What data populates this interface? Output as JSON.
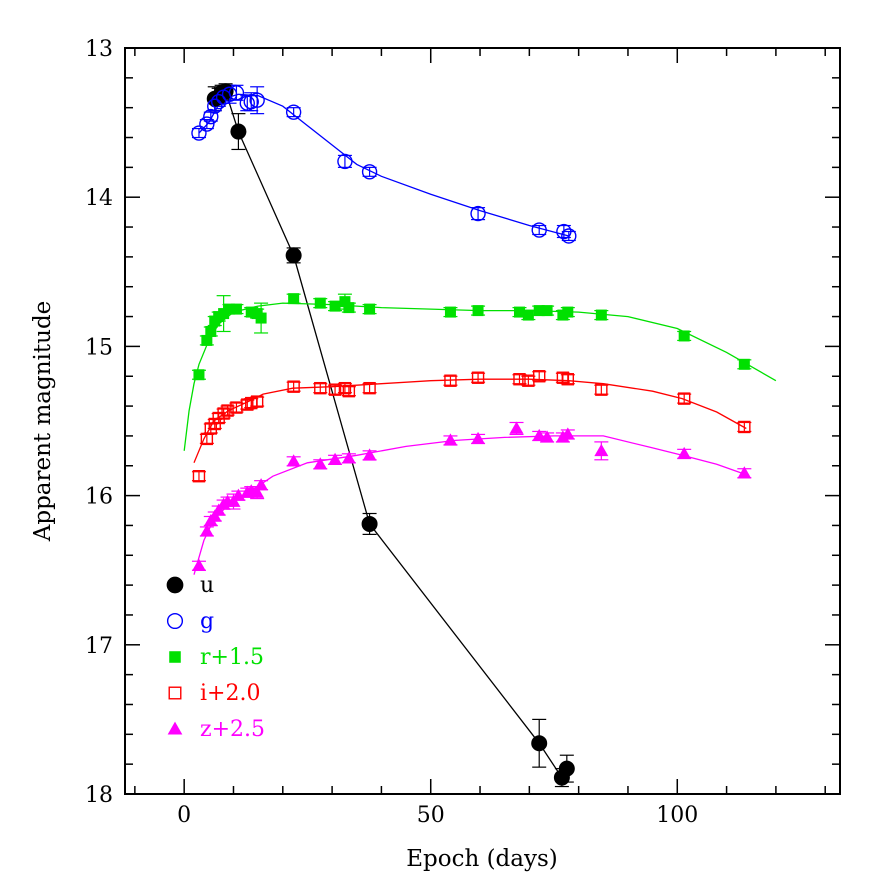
{
  "chart_data": {
    "type": "scatter",
    "title": "",
    "xlabel": "Epoch (days)",
    "ylabel": "Apparent magnitude",
    "xlim": [
      -12,
      133
    ],
    "ylim": [
      13,
      18
    ],
    "y_inverted": true,
    "xticks": [
      0,
      50,
      100
    ],
    "yticks": [
      13,
      14,
      15,
      16,
      17,
      18
    ],
    "legend_position": "bottom-left",
    "series": [
      {
        "name": "u",
        "color": "#000000",
        "marker": "filled-circle",
        "points": [
          {
            "x": 6.2,
            "y": 13.34,
            "err": 0.08
          },
          {
            "x": 7.0,
            "y": 13.33,
            "err": 0.06
          },
          {
            "x": 7.6,
            "y": 13.3,
            "err": 0.05
          },
          {
            "x": 8.4,
            "y": 13.29,
            "err": 0.05
          },
          {
            "x": 11.0,
            "y": 13.56,
            "err": 0.12
          },
          {
            "x": 22.2,
            "y": 14.39,
            "err": 0.05
          },
          {
            "x": 37.6,
            "y": 16.19,
            "err": 0.07
          },
          {
            "x": 72.0,
            "y": 17.66,
            "err": 0.16
          },
          {
            "x": 76.6,
            "y": 17.89,
            "err": 0.06
          },
          {
            "x": 77.6,
            "y": 17.83,
            "err": 0.09
          }
        ],
        "fit": [
          [
            6.2,
            13.34
          ],
          [
            8.4,
            13.29
          ],
          [
            11.0,
            13.56
          ],
          [
            22.2,
            14.39
          ],
          [
            37.6,
            16.19
          ],
          [
            72.0,
            17.66
          ],
          [
            76.6,
            17.89
          ],
          [
            77.6,
            17.83
          ]
        ]
      },
      {
        "name": "g",
        "color": "#0000ff",
        "marker": "open-circle",
        "points": [
          {
            "x": 3.0,
            "y": 13.57,
            "err": 0.03
          },
          {
            "x": 4.6,
            "y": 13.51,
            "err": 0.03
          },
          {
            "x": 5.4,
            "y": 13.46,
            "err": 0.03
          },
          {
            "x": 6.2,
            "y": 13.39,
            "err": 0.03
          },
          {
            "x": 7.0,
            "y": 13.36,
            "err": 0.03
          },
          {
            "x": 8.0,
            "y": 13.33,
            "err": 0.04
          },
          {
            "x": 9.2,
            "y": 13.31,
            "err": 0.06
          },
          {
            "x": 10.6,
            "y": 13.3,
            "err": 0.05
          },
          {
            "x": 12.8,
            "y": 13.37,
            "err": 0.05
          },
          {
            "x": 13.6,
            "y": 13.36,
            "err": 0.06
          },
          {
            "x": 14.8,
            "y": 13.35,
            "err": 0.09
          },
          {
            "x": 22.2,
            "y": 13.43,
            "err": 0.03
          },
          {
            "x": 32.6,
            "y": 13.76,
            "err": 0.04
          },
          {
            "x": 37.6,
            "y": 13.83,
            "err": 0.03
          },
          {
            "x": 59.6,
            "y": 14.11,
            "err": 0.04
          },
          {
            "x": 72.0,
            "y": 14.22,
            "err": 0.03
          },
          {
            "x": 77.0,
            "y": 14.23,
            "err": 0.04
          },
          {
            "x": 78.0,
            "y": 14.26,
            "err": 0.03
          }
        ],
        "fit": [
          [
            3,
            13.57
          ],
          [
            5,
            13.5
          ],
          [
            7,
            13.38
          ],
          [
            9,
            13.33
          ],
          [
            11,
            13.31
          ],
          [
            15,
            13.32
          ],
          [
            20,
            13.39
          ],
          [
            25,
            13.52
          ],
          [
            30,
            13.65
          ],
          [
            35,
            13.78
          ],
          [
            40,
            13.86
          ],
          [
            50,
            13.98
          ],
          [
            60,
            14.09
          ],
          [
            70,
            14.19
          ],
          [
            78,
            14.26
          ]
        ]
      },
      {
        "name": "r+1.5",
        "color": "#00e000",
        "marker": "filled-square",
        "points": [
          {
            "x": 3.0,
            "y": 15.19,
            "err": 0.03
          },
          {
            "x": 4.6,
            "y": 14.96,
            "err": 0.03
          },
          {
            "x": 5.4,
            "y": 14.9,
            "err": 0.03
          },
          {
            "x": 6.2,
            "y": 14.83,
            "err": 0.03
          },
          {
            "x": 7.0,
            "y": 14.8,
            "err": 0.03
          },
          {
            "x": 8.0,
            "y": 14.78,
            "err": 0.12
          },
          {
            "x": 9.2,
            "y": 14.75,
            "err": 0.03
          },
          {
            "x": 10.6,
            "y": 14.75,
            "err": 0.03
          },
          {
            "x": 13.6,
            "y": 14.77,
            "err": 0.03
          },
          {
            "x": 14.8,
            "y": 14.78,
            "err": 0.03
          },
          {
            "x": 15.6,
            "y": 14.81,
            "err": 0.1
          },
          {
            "x": 22.2,
            "y": 14.68,
            "err": 0.03
          },
          {
            "x": 27.6,
            "y": 14.71,
            "err": 0.03
          },
          {
            "x": 30.6,
            "y": 14.73,
            "err": 0.03
          },
          {
            "x": 32.6,
            "y": 14.7,
            "err": 0.05
          },
          {
            "x": 33.4,
            "y": 14.74,
            "err": 0.03
          },
          {
            "x": 37.6,
            "y": 14.75,
            "err": 0.03
          },
          {
            "x": 54.0,
            "y": 14.77,
            "err": 0.03
          },
          {
            "x": 59.6,
            "y": 14.76,
            "err": 0.03
          },
          {
            "x": 68.0,
            "y": 14.77,
            "err": 0.03
          },
          {
            "x": 69.8,
            "y": 14.79,
            "err": 0.03
          },
          {
            "x": 72.0,
            "y": 14.76,
            "err": 0.03
          },
          {
            "x": 73.6,
            "y": 14.76,
            "err": 0.03
          },
          {
            "x": 76.8,
            "y": 14.79,
            "err": 0.03
          },
          {
            "x": 77.8,
            "y": 14.77,
            "err": 0.03
          },
          {
            "x": 84.6,
            "y": 14.79,
            "err": 0.03
          },
          {
            "x": 101.4,
            "y": 14.93,
            "err": 0.03
          },
          {
            "x": 113.6,
            "y": 15.12,
            "err": 0.03
          }
        ],
        "fit": [
          [
            0,
            15.7
          ],
          [
            1,
            15.43
          ],
          [
            2,
            15.25
          ],
          [
            3,
            15.12
          ],
          [
            5,
            14.96
          ],
          [
            7,
            14.85
          ],
          [
            10,
            14.77
          ],
          [
            15,
            14.73
          ],
          [
            20,
            14.71
          ],
          [
            30,
            14.72
          ],
          [
            40,
            14.74
          ],
          [
            50,
            14.75
          ],
          [
            60,
            14.76
          ],
          [
            70,
            14.76
          ],
          [
            80,
            14.77
          ],
          [
            90,
            14.8
          ],
          [
            100,
            14.88
          ],
          [
            110,
            15.04
          ],
          [
            120,
            15.23
          ]
        ]
      },
      {
        "name": "i+2.0",
        "color": "#ff0000",
        "marker": "open-square",
        "points": [
          {
            "x": 3.0,
            "y": 15.87,
            "err": 0.03
          },
          {
            "x": 4.6,
            "y": 15.62,
            "err": 0.03
          },
          {
            "x": 5.4,
            "y": 15.55,
            "err": 0.03
          },
          {
            "x": 6.2,
            "y": 15.52,
            "err": 0.03
          },
          {
            "x": 7.0,
            "y": 15.48,
            "err": 0.03
          },
          {
            "x": 8.0,
            "y": 15.45,
            "err": 0.03
          },
          {
            "x": 8.8,
            "y": 15.43,
            "err": 0.03
          },
          {
            "x": 10.6,
            "y": 15.41,
            "err": 0.03
          },
          {
            "x": 12.8,
            "y": 15.39,
            "err": 0.03
          },
          {
            "x": 13.6,
            "y": 15.38,
            "err": 0.03
          },
          {
            "x": 14.8,
            "y": 15.37,
            "err": 0.03
          },
          {
            "x": 22.2,
            "y": 15.27,
            "err": 0.03
          },
          {
            "x": 27.6,
            "y": 15.28,
            "err": 0.03
          },
          {
            "x": 30.6,
            "y": 15.29,
            "err": 0.03
          },
          {
            "x": 32.6,
            "y": 15.28,
            "err": 0.03
          },
          {
            "x": 33.4,
            "y": 15.3,
            "err": 0.03
          },
          {
            "x": 37.6,
            "y": 15.28,
            "err": 0.03
          },
          {
            "x": 54.0,
            "y": 15.23,
            "err": 0.03
          },
          {
            "x": 59.6,
            "y": 15.21,
            "err": 0.03
          },
          {
            "x": 68.0,
            "y": 15.22,
            "err": 0.03
          },
          {
            "x": 69.8,
            "y": 15.23,
            "err": 0.03
          },
          {
            "x": 72.0,
            "y": 15.2,
            "err": 0.03
          },
          {
            "x": 76.8,
            "y": 15.21,
            "err": 0.03
          },
          {
            "x": 77.8,
            "y": 15.22,
            "err": 0.03
          },
          {
            "x": 84.6,
            "y": 15.29,
            "err": 0.03
          },
          {
            "x": 101.4,
            "y": 15.35,
            "err": 0.03
          },
          {
            "x": 113.6,
            "y": 15.54,
            "err": 0.03
          }
        ],
        "fit": [
          [
            2,
            15.78
          ],
          [
            4,
            15.62
          ],
          [
            6,
            15.5
          ],
          [
            9,
            15.43
          ],
          [
            13,
            15.37
          ],
          [
            16,
            15.32
          ],
          [
            22,
            15.28
          ],
          [
            30,
            15.27
          ],
          [
            40,
            15.25
          ],
          [
            50,
            15.23
          ],
          [
            60,
            15.22
          ],
          [
            70,
            15.22
          ],
          [
            78,
            15.23
          ],
          [
            85,
            15.25
          ],
          [
            95,
            15.3
          ],
          [
            101,
            15.35
          ],
          [
            108,
            15.44
          ],
          [
            114,
            15.55
          ]
        ]
      },
      {
        "name": "z+2.5",
        "color": "#ff00ff",
        "marker": "filled-triangle",
        "points": [
          {
            "x": 3.0,
            "y": 16.47,
            "err": 0.03
          },
          {
            "x": 4.6,
            "y": 16.24,
            "err": 0.03
          },
          {
            "x": 5.4,
            "y": 16.17,
            "err": 0.03
          },
          {
            "x": 6.2,
            "y": 16.14,
            "err": 0.03
          },
          {
            "x": 7.0,
            "y": 16.1,
            "err": 0.03
          },
          {
            "x": 8.0,
            "y": 16.06,
            "err": 0.03
          },
          {
            "x": 8.8,
            "y": 16.04,
            "err": 0.03
          },
          {
            "x": 10.0,
            "y": 16.04,
            "err": 0.05
          },
          {
            "x": 11.0,
            "y": 16.0,
            "err": 0.03
          },
          {
            "x": 12.8,
            "y": 15.98,
            "err": 0.03
          },
          {
            "x": 13.6,
            "y": 15.97,
            "err": 0.03
          },
          {
            "x": 14.8,
            "y": 15.98,
            "err": 0.04
          },
          {
            "x": 15.6,
            "y": 15.93,
            "err": 0.03
          },
          {
            "x": 22.2,
            "y": 15.77,
            "err": 0.03
          },
          {
            "x": 27.6,
            "y": 15.79,
            "err": 0.03
          },
          {
            "x": 30.6,
            "y": 15.76,
            "err": 0.03
          },
          {
            "x": 33.4,
            "y": 15.75,
            "err": 0.03
          },
          {
            "x": 37.6,
            "y": 15.73,
            "err": 0.03
          },
          {
            "x": 54.0,
            "y": 15.63,
            "err": 0.03
          },
          {
            "x": 59.6,
            "y": 15.62,
            "err": 0.03
          },
          {
            "x": 67.4,
            "y": 15.55,
            "err": 0.04
          },
          {
            "x": 72.0,
            "y": 15.6,
            "err": 0.03
          },
          {
            "x": 73.6,
            "y": 15.61,
            "err": 0.03
          },
          {
            "x": 76.8,
            "y": 15.61,
            "err": 0.03
          },
          {
            "x": 77.8,
            "y": 15.59,
            "err": 0.03
          },
          {
            "x": 84.6,
            "y": 15.7,
            "err": 0.06
          },
          {
            "x": 101.4,
            "y": 15.72,
            "err": 0.03
          },
          {
            "x": 113.6,
            "y": 15.85,
            "err": 0.03
          }
        ],
        "fit": [
          [
            2,
            16.53
          ],
          [
            4,
            16.3
          ],
          [
            6,
            16.16
          ],
          [
            9,
            16.06
          ],
          [
            13,
            15.98
          ],
          [
            18,
            15.87
          ],
          [
            25,
            15.78
          ],
          [
            35,
            15.73
          ],
          [
            45,
            15.67
          ],
          [
            55,
            15.63
          ],
          [
            65,
            15.61
          ],
          [
            75,
            15.6
          ],
          [
            85,
            15.6
          ],
          [
            95,
            15.68
          ],
          [
            101,
            15.73
          ],
          [
            108,
            15.79
          ],
          [
            114,
            15.86
          ]
        ]
      }
    ]
  }
}
